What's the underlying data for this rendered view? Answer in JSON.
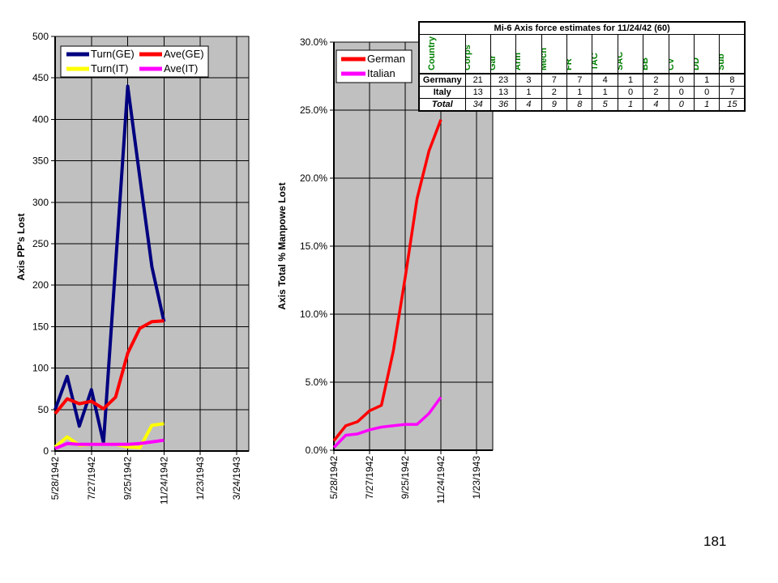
{
  "page": {
    "number": "181"
  },
  "colors": {
    "plot_background": "#c0c0c0",
    "gridline": "#000000",
    "axis": "#000000",
    "table_header_text": "#008000",
    "series_navy": "#000080",
    "series_red": "#ff0000",
    "series_yellow": "#ffff00",
    "series_magenta": "#ff00ff"
  },
  "chart_data": [
    {
      "type": "line",
      "title": "",
      "xlabel": "",
      "ylabel": "Axis PP's Lost",
      "ylim": [
        0,
        500
      ],
      "ytick_labels": [
        "0",
        "50",
        "100",
        "150",
        "200",
        "250",
        "300",
        "350",
        "400",
        "450",
        "500"
      ],
      "xtick_labels": [
        "5/28/1942",
        "7/27/1942",
        "9/25/1942",
        "11/24/1942",
        "1/23/1943",
        "3/24/1943"
      ],
      "grid": "on",
      "plot_bg": "#c0c0c0",
      "legend_position": "top-left-inside",
      "n_points": 10,
      "series": [
        {
          "name": "Turn(GE)",
          "color": "#000080",
          "values": [
            50,
            90,
            30,
            74,
            10,
            225,
            440,
            330,
            222,
            156
          ]
        },
        {
          "name": "Ave(GE)",
          "color": "#ff0000",
          "values": [
            45,
            63,
            57,
            60,
            51,
            65,
            118,
            148,
            156,
            157
          ]
        },
        {
          "name": "Turn(IT)",
          "color": "#ffff00",
          "values": [
            5,
            17,
            7,
            8,
            8,
            8,
            5,
            4,
            31,
            33
          ]
        },
        {
          "name": "Ave(IT)",
          "color": "#ff00ff",
          "values": [
            3,
            9,
            8,
            8,
            8,
            8,
            8,
            9,
            11,
            13
          ]
        }
      ]
    },
    {
      "type": "line",
      "title": "",
      "xlabel": "",
      "ylabel": "Axis Total % Manpowe Lost",
      "ylim": [
        0,
        30
      ],
      "ytick_labels": [
        "0.0%",
        "5.0%",
        "10.0%",
        "15.0%",
        "20.0%",
        "25.0%",
        "30.0%"
      ],
      "xtick_labels": [
        "5/28/1942",
        "7/27/1942",
        "9/25/1942",
        "11/24/1942",
        "1/23/1943"
      ],
      "grid": "on",
      "plot_bg": "#c0c0c0",
      "legend_position": "top-left-inside",
      "n_points": 10,
      "series": [
        {
          "name": "German",
          "color": "#ff0000",
          "values": [
            0.7,
            1.8,
            2.1,
            2.9,
            3.3,
            7.3,
            12.7,
            18.5,
            22.0,
            24.3
          ]
        },
        {
          "name": "Italian",
          "color": "#ff00ff",
          "values": [
            0.2,
            1.1,
            1.2,
            1.5,
            1.7,
            1.8,
            1.9,
            1.9,
            2.7,
            3.9
          ]
        }
      ]
    }
  ],
  "table": {
    "title": "Mi-6 Axis force estimates for 11/24/42 (60)",
    "columns": [
      "Country",
      "Corps",
      "Gar",
      "Arm",
      "Mech",
      "FR",
      "TAC",
      "SAC",
      "BB",
      "CV",
      "DD",
      "Sub"
    ],
    "rows": [
      {
        "label": "Germany",
        "style": "bold",
        "values": [
          21,
          23,
          3,
          7,
          7,
          4,
          1,
          2,
          0,
          1,
          8
        ]
      },
      {
        "label": "Italy",
        "style": "bold",
        "values": [
          13,
          13,
          1,
          2,
          1,
          1,
          0,
          2,
          0,
          0,
          7
        ]
      },
      {
        "label": "Total",
        "style": "bold-italic",
        "values": [
          34,
          36,
          4,
          9,
          8,
          5,
          1,
          4,
          0,
          1,
          15
        ]
      }
    ]
  }
}
